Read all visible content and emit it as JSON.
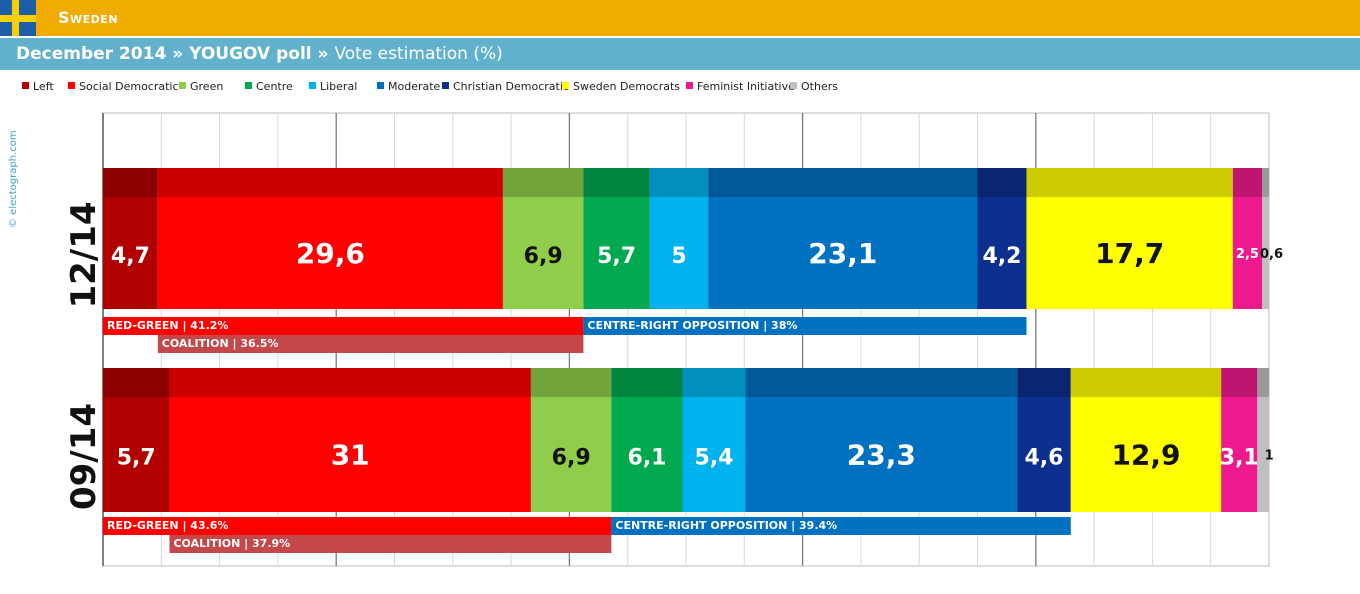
{
  "header": {
    "country": "Sweden",
    "subtitle_date": "December 2014",
    "subtitle_sep1": " » ",
    "subtitle_pollster": "YOUGOV poll",
    "subtitle_sep2": " » ",
    "subtitle_metric": "Vote estimation (%)"
  },
  "credit": "© electograph.com",
  "colors": {
    "header_band": "#f0ad00",
    "subtitle_band": "#61b1cd",
    "flag_blue": "#1a5fa8",
    "flag_yellow": "#f8d000"
  },
  "legend": [
    {
      "label": "Left",
      "color": "#b00000"
    },
    {
      "label": "Social Democratic",
      "color": "#ff0000"
    },
    {
      "label": "Green",
      "color": "#8fcd4a"
    },
    {
      "label": "Centre",
      "color": "#00a84f"
    },
    {
      "label": "Liberal",
      "color": "#00b3ee"
    },
    {
      "label": "Moderate",
      "color": "#0071c0"
    },
    {
      "label": "Christian Democratic",
      "color": "#0d2f8f"
    },
    {
      "label": "Sweden Democrats",
      "color": "#ffff00"
    },
    {
      "label": "Feminist Initiative",
      "color": "#ee1a8d"
    },
    {
      "label": "Others",
      "color": "#bfbfbf"
    }
  ],
  "chart_data": {
    "type": "bar",
    "orientation": "horizontal-stacked",
    "xlim": [
      0,
      100
    ],
    "grid": true,
    "parties": [
      "Left",
      "Social Democratic",
      "Green",
      "Centre",
      "Liberal",
      "Moderate",
      "Christian Democratic",
      "Sweden Democrats",
      "Feminist Initiative",
      "Others"
    ],
    "series": [
      {
        "name": "12/14",
        "values": [
          4.7,
          29.6,
          6.9,
          5.7,
          5.0,
          23.1,
          4.2,
          17.7,
          2.5,
          0.6
        ],
        "labels": [
          "4,7",
          "29,6",
          "6,9",
          "5,7",
          "5",
          "23,1",
          "4,2",
          "17,7",
          "2,5",
          "0,6"
        ],
        "blocs": {
          "red_green": {
            "name": "RED-GREEN",
            "value": "41.2%",
            "sum": 41.2
          },
          "coalition": {
            "name": "COALITION",
            "value": "36.5%",
            "sum": 36.5
          },
          "opposition": {
            "name": "CENTRE-RIGHT OPPOSITION",
            "value": "38%",
            "sum": 38.0
          }
        }
      },
      {
        "name": "09/14",
        "values": [
          5.7,
          31.0,
          6.9,
          6.1,
          5.4,
          23.3,
          4.6,
          12.9,
          3.1,
          1.0
        ],
        "labels": [
          "5,7",
          "31",
          "6,9",
          "6,1",
          "5,4",
          "23,3",
          "4,6",
          "12,9",
          "3,1",
          "1"
        ],
        "blocs": {
          "red_green": {
            "name": "RED-GREEN",
            "value": "43.6%",
            "sum": 43.6
          },
          "coalition": {
            "name": "COALITION",
            "value": "37.9%",
            "sum": 37.9
          },
          "opposition": {
            "name": "CENTRE-RIGHT OPPOSITION",
            "value": "39.4%",
            "sum": 39.4
          }
        }
      }
    ]
  }
}
